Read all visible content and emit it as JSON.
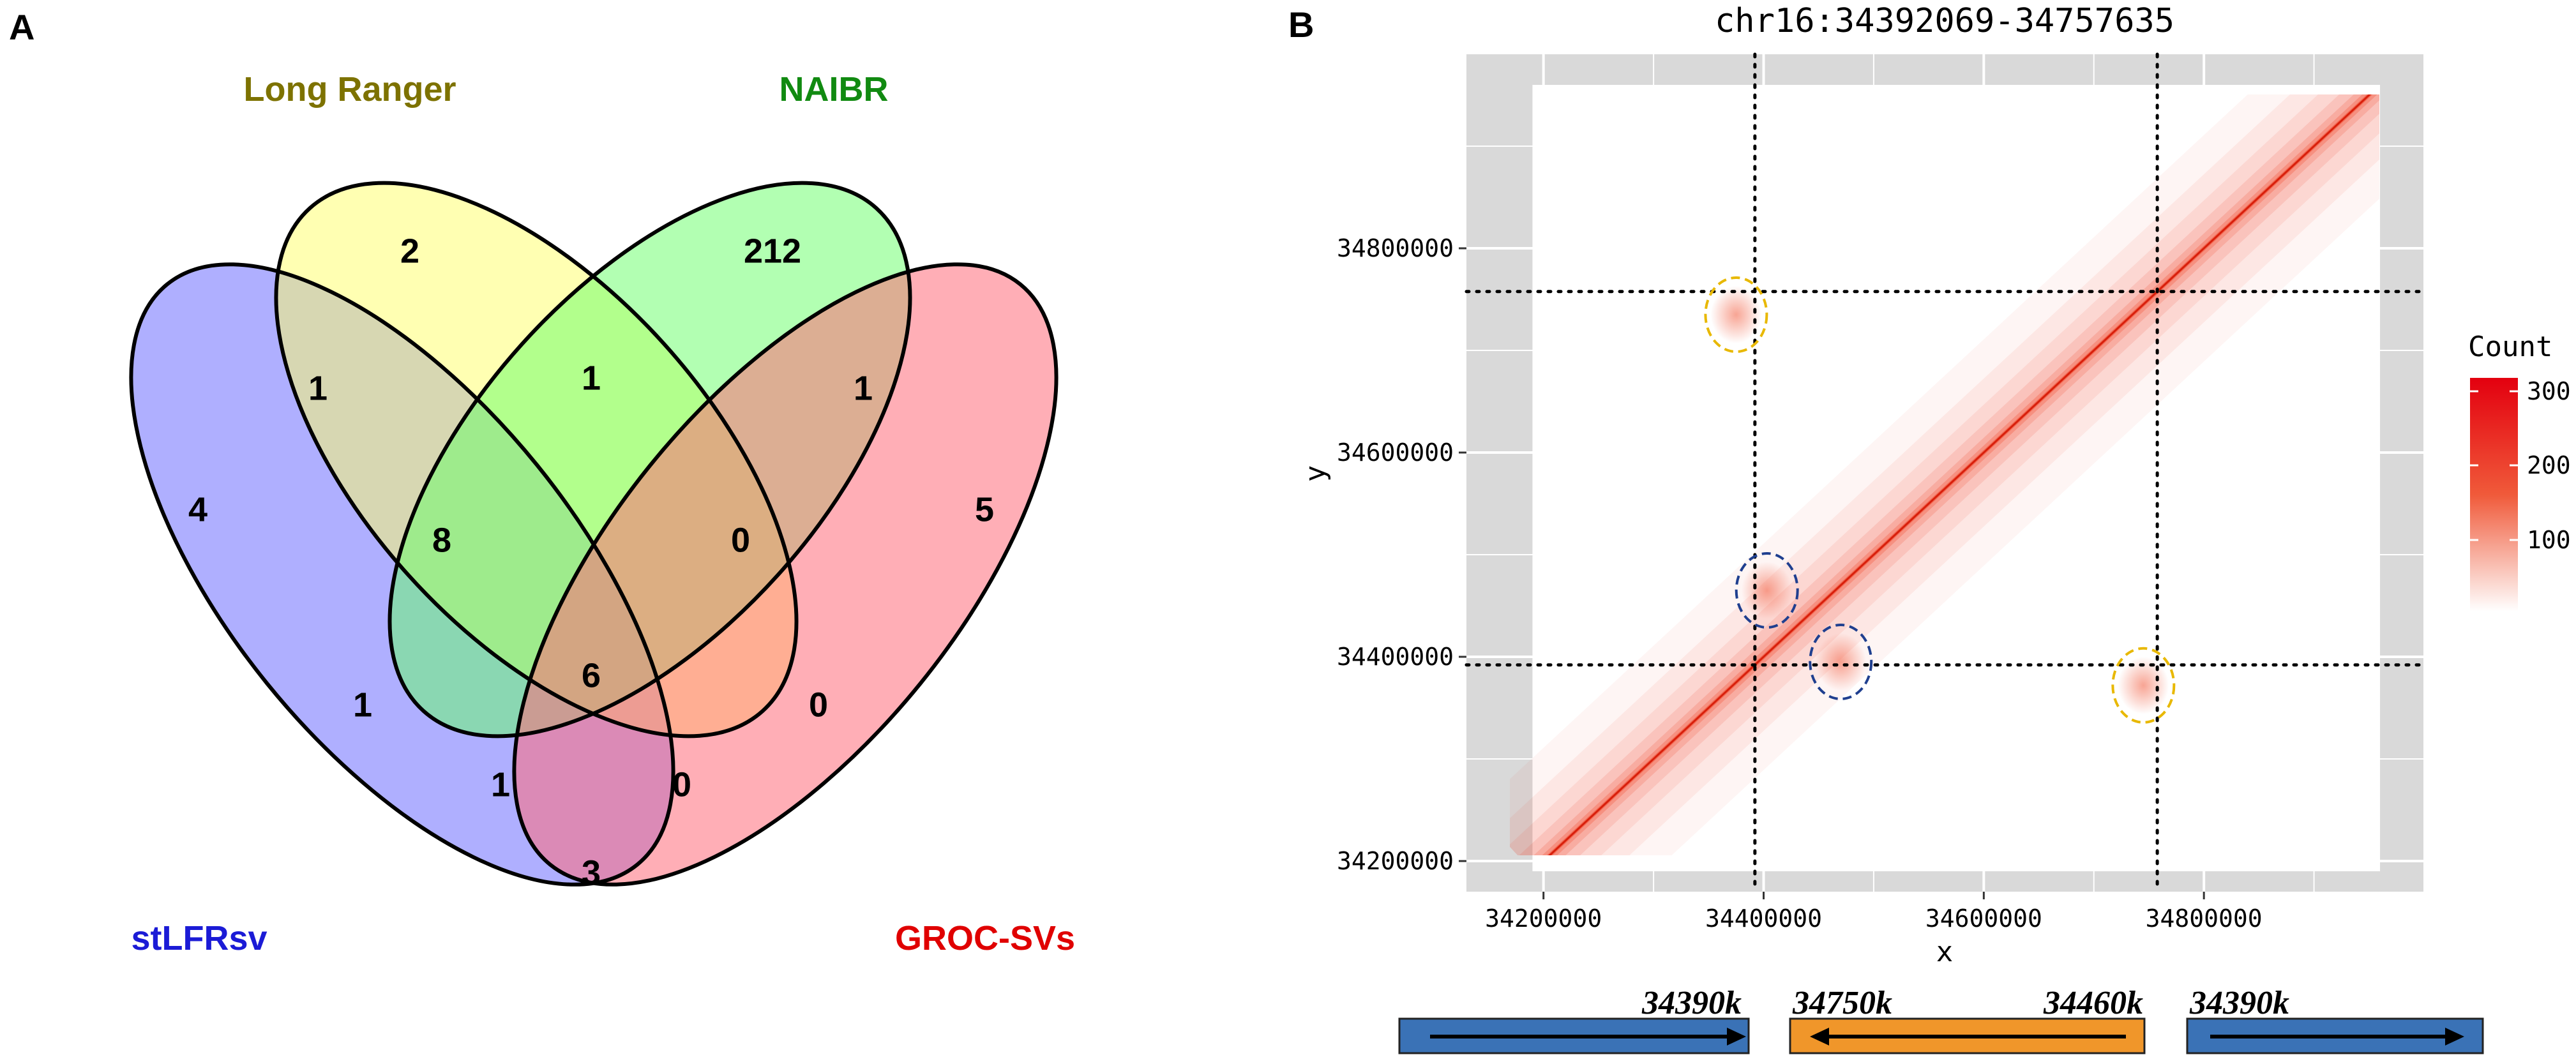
{
  "panels": {
    "a_label": "A",
    "b_label": "B"
  },
  "venn": {
    "sets": [
      {
        "name": "stLFRsv",
        "color": "#6d6dff",
        "label_color": "#1b1bd6"
      },
      {
        "name": "Long Ranger",
        "color": "#ffff66",
        "label_color": "#7d7200"
      },
      {
        "name": "NAIBR",
        "color": "#66ff66",
        "label_color": "#118a11"
      },
      {
        "name": "GROC-SVs",
        "color": "#ff6b7a",
        "label_color": "#e00000"
      }
    ],
    "regions": [
      {
        "sets": "stLFRsv only",
        "count": "4"
      },
      {
        "sets": "Long Ranger only",
        "count": "2"
      },
      {
        "sets": "NAIBR only",
        "count": "212"
      },
      {
        "sets": "GROC-SVs only",
        "count": "5"
      },
      {
        "sets": "stLFRsv & Long Ranger",
        "count": "1"
      },
      {
        "sets": "Long Ranger & NAIBR",
        "count": "1"
      },
      {
        "sets": "NAIBR & GROC-SVs",
        "count": "1"
      },
      {
        "sets": "stLFRsv & Long Ranger & NAIBR",
        "count": "8"
      },
      {
        "sets": "Long Ranger & NAIBR & GROC-SVs",
        "count": "0"
      },
      {
        "sets": "stLFRsv & NAIBR",
        "count": "1"
      },
      {
        "sets": "Long Ranger & GROC-SVs",
        "count": "0"
      },
      {
        "sets": "all four",
        "count": "6"
      },
      {
        "sets": "stLFRsv & NAIBR & GROC-SVs",
        "count": "1"
      },
      {
        "sets": "stLFRsv & Long Ranger & GROC-SVs",
        "count": "0"
      },
      {
        "sets": "stLFRsv & GROC-SVs",
        "count": "3"
      }
    ]
  },
  "chart_data": {
    "type": "heatmap",
    "title": "chr16:34392069-34757635",
    "xlabel": "x",
    "ylabel": "y",
    "xlim": [
      34130000,
      35000000
    ],
    "ylim": [
      34170000,
      34990000
    ],
    "x_ticks": [
      34200000,
      34400000,
      34600000,
      34800000
    ],
    "y_ticks": [
      34200000,
      34400000,
      34600000,
      34800000
    ],
    "data_extent": {
      "x": [
        34190000,
        34960000
      ],
      "y": [
        34190000,
        34960000
      ]
    },
    "breakpoints": {
      "x": [
        34392069,
        34757635
      ],
      "y": [
        34392069,
        34757635
      ]
    },
    "highlights": [
      {
        "x": 34375000,
        "y": 34735000,
        "color": "#e8b800",
        "style": "dashed"
      },
      {
        "x": 34745000,
        "y": 34372000,
        "color": "#e8b800",
        "style": "dashed"
      },
      {
        "x": 34403000,
        "y": 34465000,
        "color": "#1f3f8f",
        "style": "dashed"
      },
      {
        "x": 34470000,
        "y": 34395000,
        "color": "#1f3f8f",
        "style": "dashed"
      }
    ],
    "legend": {
      "title": "Count",
      "ticks": [
        "300",
        "200",
        "100"
      ],
      "max_color": "#e3000f",
      "min_color": "#ffffff",
      "position": "right"
    },
    "panel_background": "#d9d9d9",
    "grid": true,
    "segments": [
      {
        "label": "34390k",
        "color": "#3a72b6",
        "direction": "right"
      },
      {
        "label_left": "34750k",
        "label_right": "34460k",
        "color": "#f0962a",
        "direction": "left"
      },
      {
        "label": "34390k",
        "color": "#3a72b6",
        "direction": "right"
      }
    ]
  }
}
